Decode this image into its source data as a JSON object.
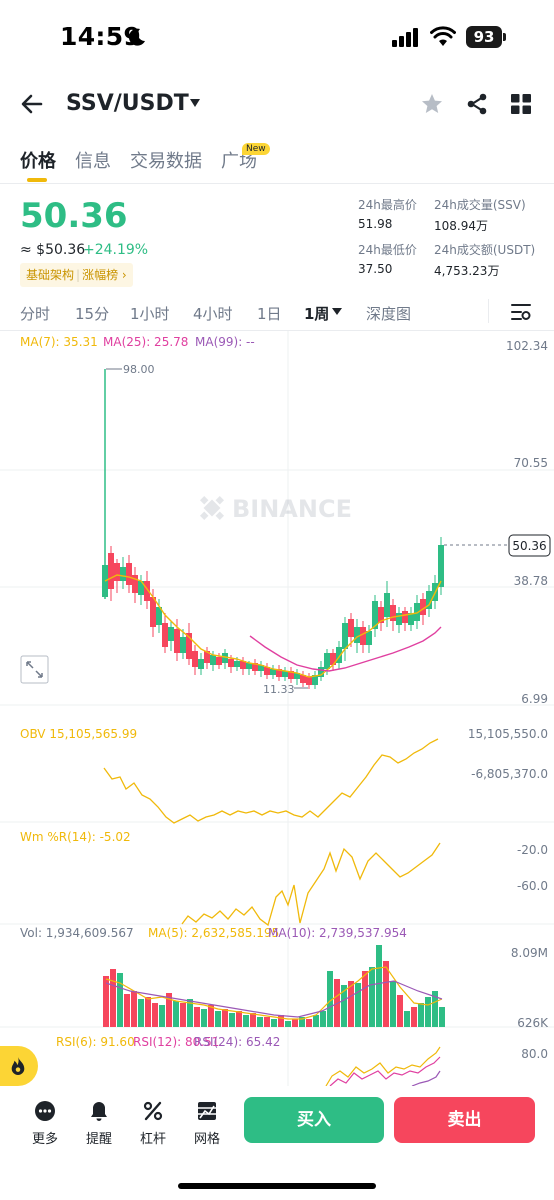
{
  "status_bar": {
    "time": "14:59",
    "battery": "93"
  },
  "header": {
    "pair": "SSV/USDT"
  },
  "tabs": [
    {
      "label": "价格"
    },
    {
      "label": "信息"
    },
    {
      "label": "交易数据"
    },
    {
      "label": "广场"
    }
  ],
  "new_badge": "New",
  "price": {
    "last": "50.36",
    "usd": "≈ $50.36",
    "change": "+24.19%",
    "tag_1": "基础架构",
    "tag_2": "涨幅榜",
    "tag_arrow": "›"
  },
  "stats": {
    "high_label": "24h最高价",
    "high_value": "51.98",
    "low_label": "24h最低价",
    "low_value": "37.50",
    "vol_ssv_label": "24h成交量(SSV)",
    "vol_ssv_value": "108.94万",
    "vol_usdt_label": "24h成交额(USDT)",
    "vol_usdt_value": "4,753.23万"
  },
  "intervals": [
    {
      "label": "分时"
    },
    {
      "label": "15分"
    },
    {
      "label": "1小时"
    },
    {
      "label": "4小时"
    },
    {
      "label": "1日"
    },
    {
      "label": "1周"
    },
    {
      "label": "深度图"
    }
  ],
  "chart": {
    "ma7": "MA(7): 35.31",
    "ma25": "MA(25): 25.78",
    "ma99": "MA(99): --",
    "axis_top": "102.34",
    "axis_mid": "70.55",
    "axis_low": "38.78",
    "axis_bottom": "6.99",
    "price_tag": "50.36",
    "peak_label": "98.00",
    "trough_label": "11.33",
    "watermark": "BINANCE",
    "obv_label": "OBV 15,105,565.99",
    "obv_axis_1": "15,105,550.0",
    "obv_axis_2": "-6,805,370.0",
    "wr_label": "Wm %R(14): -5.02",
    "wr_axis_1": "-20.0",
    "wr_axis_2": "-60.0",
    "vol_label": "Vol: 1,934,609.567",
    "vol_ma5": "MA(5): 2,632,585.195",
    "vol_ma10": "MA(10): 2,739,537.954",
    "vol_axis_1": "8.09M",
    "vol_axis_2": "626K",
    "rsi6": "RSI(6): 91.60",
    "rsi12": "RSI(12): 80.51",
    "rsi24": "RSI(24): 65.42",
    "rsi_axis": "80.0"
  },
  "bottom": {
    "more": "更多",
    "alert": "提醒",
    "leverage": "杠杆",
    "grid": "网格",
    "buy": "买入",
    "sell": "卖出"
  },
  "colors": {
    "up": "#2ebd85",
    "down": "#f6465d",
    "ma7": "#f0b90b",
    "ma25": "#e040a0",
    "ma99": "#9b59b6",
    "accent": "#fcd535"
  }
}
